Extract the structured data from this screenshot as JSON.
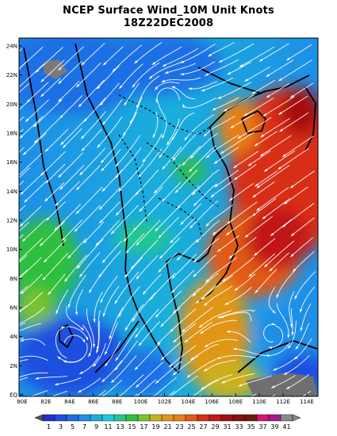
{
  "title": {
    "line1": "NCEP Surface Wind_10M Unit Knots",
    "line2": "18Z22DEC2008"
  },
  "map": {
    "lon_range": [
      80,
      115
    ],
    "lat_range": [
      0,
      25
    ],
    "lon_ticks": [
      "80E",
      "82E",
      "84E",
      "86E",
      "88E",
      "100E",
      "102E",
      "104E",
      "106E",
      "108E",
      "110E",
      "112E",
      "114E"
    ],
    "lat_ticks": [
      "EQ",
      "2N",
      "4N",
      "6N",
      "8N",
      "10N",
      "12N",
      "14N",
      "16N",
      "18N",
      "20N",
      "22N",
      "24N"
    ],
    "field": "10m wind speed (knots) with streamlines",
    "coastline_color": "#000000",
    "streamline_color": "#ffffff"
  },
  "legend": {
    "labels": [
      "1",
      "3",
      "5",
      "7",
      "9",
      "11",
      "13",
      "15",
      "17",
      "19",
      "21",
      "23",
      "25",
      "27",
      "29",
      "31",
      "33",
      "35",
      "37",
      "39",
      "41"
    ],
    "colors": [
      "#2b2bd0",
      "#1b4fe0",
      "#1a6fe6",
      "#1d8fe8",
      "#19afdb",
      "#1dcadc",
      "#21c78f",
      "#2fbf3e",
      "#7cc32a",
      "#c9b21f",
      "#e09619",
      "#e87f17",
      "#e35a14",
      "#d92d18",
      "#c21818",
      "#a50e0e",
      "#851010",
      "#6b1a10",
      "#d8156f",
      "#a61a8c",
      "#8a8a8a"
    ],
    "under_color": "#555555",
    "over_color": "#8a8a8a"
  }
}
